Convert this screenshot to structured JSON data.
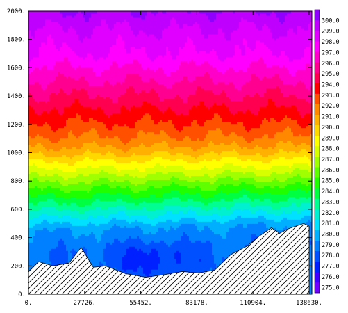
{
  "chart_data": {
    "type": "heatmap",
    "title": "",
    "xlabel": "",
    "ylabel": "",
    "xlim": [
      0,
      140000
    ],
    "ylim": [
      0,
      2000
    ],
    "x_ticks": [
      "0.",
      "27726.",
      "55452.",
      "83178.",
      "110904.",
      "138630."
    ],
    "x_tick_values": [
      0,
      27726,
      55452,
      83178,
      110904,
      138630
    ],
    "y_ticks": [
      "0.",
      "200.",
      "400.",
      "600.",
      "800.",
      "1000.",
      "1200.",
      "1400.",
      "1600.",
      "1800.",
      "2000."
    ],
    "y_tick_values": [
      0,
      200,
      400,
      600,
      800,
      1000,
      1200,
      1400,
      1600,
      1800,
      2000
    ],
    "colorbar": {
      "min": 274.5,
      "max": 301.0,
      "labels": [
        "275.0",
        "276.0",
        "277.0",
        "278.0",
        "279.0",
        "280.0",
        "281.0",
        "282.0",
        "283.0",
        "284.0",
        "285.0",
        "286.0",
        "287.0",
        "288.0",
        "289.0",
        "290.0",
        "291.0",
        "292.0",
        "293.0",
        "294.0",
        "295.0",
        "296.0",
        "297.0",
        "298.0",
        "299.0",
        "300.0"
      ],
      "colors": [
        "#7000ff",
        "#4000ff",
        "#0020ff",
        "#0050ff",
        "#0080ff",
        "#00b0ff",
        "#00e0ff",
        "#00f0d0",
        "#00ff90",
        "#00ff40",
        "#20ff00",
        "#60ff00",
        "#a0ff00",
        "#d8ff00",
        "#ffff00",
        "#ffd800",
        "#ffb000",
        "#ff8800",
        "#ff5000",
        "#ff0000",
        "#ff0050",
        "#ff0090",
        "#ff00c8",
        "#ff00ff",
        "#e000ff",
        "#c000ff",
        "#9000ff"
      ]
    },
    "terrain_profile": {
      "x": [
        0,
        5000,
        12000,
        20000,
        26000,
        32000,
        38000,
        48000,
        58000,
        68000,
        76000,
        84000,
        92000,
        100000,
        108000,
        114000,
        120000,
        124000,
        128000,
        132000,
        136000,
        138630
      ],
      "y": [
        160,
        230,
        200,
        220,
        330,
        190,
        200,
        145,
        120,
        140,
        160,
        150,
        170,
        280,
        340,
        410,
        470,
        430,
        460,
        480,
        500,
        480
      ]
    },
    "potential_temperature_profile": {
      "z": [
        0,
        100,
        300,
        450,
        500,
        550,
        600,
        650,
        700,
        750,
        800,
        850,
        900,
        950,
        1000,
        1050,
        1100,
        1150,
        1200,
        1300,
        1400,
        1500,
        1600,
        1700,
        1800,
        1900,
        2000
      ],
      "theta": [
        279.0,
        278.5,
        278.5,
        279.5,
        280.5,
        281.5,
        282.5,
        283.5,
        284.5,
        285.5,
        286.5,
        287.5,
        288.5,
        289.5,
        290.5,
        291.3,
        292.0,
        292.5,
        293.0,
        294.0,
        295.0,
        296.0,
        297.0,
        298.0,
        298.5,
        299.2,
        300.0
      ]
    }
  }
}
